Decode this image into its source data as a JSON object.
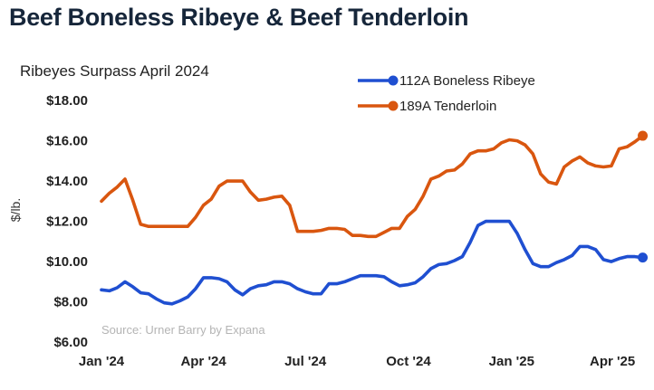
{
  "header": {
    "title": "Beef Boneless Ribeye & Beef Tenderloin"
  },
  "chart_data": {
    "type": "line",
    "title": "Beef Boneless Ribeye & Beef Tenderloin",
    "subtitle": "Ribeyes Surpass April 2024",
    "ylabel": "$/lb.",
    "xlabel": "",
    "source": "Source: Urner Barry by Expana",
    "ylim": [
      6,
      18
    ],
    "y_ticks": [
      "$6.00",
      "$8.00",
      "$10.00",
      "$12.00",
      "$14.00",
      "$16.00",
      "$18.00"
    ],
    "x_tick_labels": [
      "Jan '24",
      "Apr '24",
      "Jul '24",
      "Oct '24",
      "Jan '25",
      "Apr '25"
    ],
    "x_tick_dates": [
      "2024-01-01",
      "2024-04-01",
      "2024-07-01",
      "2024-10-01",
      "2025-01-01",
      "2025-04-01"
    ],
    "x_range": [
      "2024-01-01",
      "2025-04-30"
    ],
    "grid": false,
    "legend_position": "top-right",
    "series": [
      {
        "name": "112A Boneless Ribeye",
        "color": "#1f4fd1",
        "end_marker": true,
        "points": [
          [
            "2024-01-01",
            8.55
          ],
          [
            "2024-01-08",
            8.5
          ],
          [
            "2024-01-15",
            8.65
          ],
          [
            "2024-01-22",
            8.95
          ],
          [
            "2024-01-29",
            8.7
          ],
          [
            "2024-02-05",
            8.4
          ],
          [
            "2024-02-12",
            8.35
          ],
          [
            "2024-02-19",
            8.1
          ],
          [
            "2024-02-26",
            7.9
          ],
          [
            "2024-03-04",
            7.85
          ],
          [
            "2024-03-11",
            8.0
          ],
          [
            "2024-03-18",
            8.2
          ],
          [
            "2024-03-25",
            8.6
          ],
          [
            "2024-04-01",
            9.15
          ],
          [
            "2024-04-08",
            9.15
          ],
          [
            "2024-04-15",
            9.1
          ],
          [
            "2024-04-22",
            8.95
          ],
          [
            "2024-04-29",
            8.55
          ],
          [
            "2024-05-06",
            8.3
          ],
          [
            "2024-05-13",
            8.6
          ],
          [
            "2024-05-20",
            8.75
          ],
          [
            "2024-05-27",
            8.8
          ],
          [
            "2024-06-03",
            8.95
          ],
          [
            "2024-06-10",
            8.95
          ],
          [
            "2024-06-17",
            8.85
          ],
          [
            "2024-06-24",
            8.6
          ],
          [
            "2024-07-01",
            8.45
          ],
          [
            "2024-07-08",
            8.35
          ],
          [
            "2024-07-15",
            8.35
          ],
          [
            "2024-07-22",
            8.85
          ],
          [
            "2024-07-29",
            8.85
          ],
          [
            "2024-08-05",
            8.95
          ],
          [
            "2024-08-12",
            9.1
          ],
          [
            "2024-08-19",
            9.25
          ],
          [
            "2024-08-26",
            9.25
          ],
          [
            "2024-09-02",
            9.25
          ],
          [
            "2024-09-09",
            9.2
          ],
          [
            "2024-09-16",
            8.95
          ],
          [
            "2024-09-23",
            8.75
          ],
          [
            "2024-09-30",
            8.8
          ],
          [
            "2024-10-07",
            8.9
          ],
          [
            "2024-10-14",
            9.2
          ],
          [
            "2024-10-21",
            9.6
          ],
          [
            "2024-10-28",
            9.8
          ],
          [
            "2024-11-04",
            9.85
          ],
          [
            "2024-11-11",
            10.0
          ],
          [
            "2024-11-18",
            10.2
          ],
          [
            "2024-11-25",
            10.9
          ],
          [
            "2024-12-02",
            11.75
          ],
          [
            "2024-12-09",
            11.95
          ],
          [
            "2024-12-16",
            11.95
          ],
          [
            "2024-12-23",
            11.95
          ],
          [
            "2024-12-30",
            11.95
          ],
          [
            "2025-01-06",
            11.35
          ],
          [
            "2025-01-13",
            10.55
          ],
          [
            "2025-01-20",
            9.85
          ],
          [
            "2025-01-27",
            9.7
          ],
          [
            "2025-02-03",
            9.7
          ],
          [
            "2025-02-10",
            9.9
          ],
          [
            "2025-02-17",
            10.05
          ],
          [
            "2025-02-24",
            10.25
          ],
          [
            "2025-03-03",
            10.7
          ],
          [
            "2025-03-10",
            10.7
          ],
          [
            "2025-03-17",
            10.55
          ],
          [
            "2025-03-24",
            10.05
          ],
          [
            "2025-03-31",
            9.95
          ],
          [
            "2025-04-07",
            10.1
          ],
          [
            "2025-04-14",
            10.2
          ],
          [
            "2025-04-21",
            10.2
          ],
          [
            "2025-04-28",
            10.15
          ]
        ]
      },
      {
        "name": "189A Tenderloin",
        "color": "#d9560f",
        "end_marker": true,
        "points": [
          [
            "2024-01-01",
            12.95
          ],
          [
            "2024-01-08",
            13.35
          ],
          [
            "2024-01-15",
            13.65
          ],
          [
            "2024-01-22",
            14.05
          ],
          [
            "2024-01-29",
            13.0
          ],
          [
            "2024-02-05",
            11.8
          ],
          [
            "2024-02-12",
            11.7
          ],
          [
            "2024-02-19",
            11.7
          ],
          [
            "2024-02-26",
            11.7
          ],
          [
            "2024-03-04",
            11.7
          ],
          [
            "2024-03-11",
            11.7
          ],
          [
            "2024-03-18",
            11.7
          ],
          [
            "2024-03-25",
            12.15
          ],
          [
            "2024-04-01",
            12.75
          ],
          [
            "2024-04-08",
            13.05
          ],
          [
            "2024-04-15",
            13.7
          ],
          [
            "2024-04-22",
            13.95
          ],
          [
            "2024-04-29",
            13.95
          ],
          [
            "2024-05-06",
            13.95
          ],
          [
            "2024-05-13",
            13.4
          ],
          [
            "2024-05-20",
            13.0
          ],
          [
            "2024-05-27",
            13.05
          ],
          [
            "2024-06-03",
            13.15
          ],
          [
            "2024-06-10",
            13.2
          ],
          [
            "2024-06-17",
            12.75
          ],
          [
            "2024-06-24",
            11.45
          ],
          [
            "2024-07-01",
            11.45
          ],
          [
            "2024-07-08",
            11.45
          ],
          [
            "2024-07-15",
            11.5
          ],
          [
            "2024-07-22",
            11.6
          ],
          [
            "2024-07-29",
            11.6
          ],
          [
            "2024-08-05",
            11.55
          ],
          [
            "2024-08-12",
            11.25
          ],
          [
            "2024-08-19",
            11.25
          ],
          [
            "2024-08-26",
            11.2
          ],
          [
            "2024-09-02",
            11.2
          ],
          [
            "2024-09-09",
            11.4
          ],
          [
            "2024-09-16",
            11.6
          ],
          [
            "2024-09-23",
            11.6
          ],
          [
            "2024-09-30",
            12.2
          ],
          [
            "2024-10-07",
            12.55
          ],
          [
            "2024-10-14",
            13.2
          ],
          [
            "2024-10-21",
            14.05
          ],
          [
            "2024-10-28",
            14.2
          ],
          [
            "2024-11-04",
            14.45
          ],
          [
            "2024-11-11",
            14.5
          ],
          [
            "2024-11-18",
            14.8
          ],
          [
            "2024-11-25",
            15.3
          ],
          [
            "2024-12-02",
            15.45
          ],
          [
            "2024-12-09",
            15.45
          ],
          [
            "2024-12-16",
            15.55
          ],
          [
            "2024-12-23",
            15.85
          ],
          [
            "2024-12-30",
            16.0
          ],
          [
            "2025-01-06",
            15.95
          ],
          [
            "2025-01-13",
            15.75
          ],
          [
            "2025-01-20",
            15.3
          ],
          [
            "2025-01-27",
            14.3
          ],
          [
            "2025-02-03",
            13.9
          ],
          [
            "2025-02-10",
            13.8
          ],
          [
            "2025-02-17",
            14.65
          ],
          [
            "2025-02-24",
            14.95
          ],
          [
            "2025-03-03",
            15.15
          ],
          [
            "2025-03-10",
            14.85
          ],
          [
            "2025-03-17",
            14.7
          ],
          [
            "2025-03-24",
            14.65
          ],
          [
            "2025-03-31",
            14.7
          ],
          [
            "2025-04-07",
            15.55
          ],
          [
            "2025-04-14",
            15.65
          ],
          [
            "2025-04-21",
            15.9
          ],
          [
            "2025-04-28",
            16.2
          ]
        ]
      }
    ]
  }
}
